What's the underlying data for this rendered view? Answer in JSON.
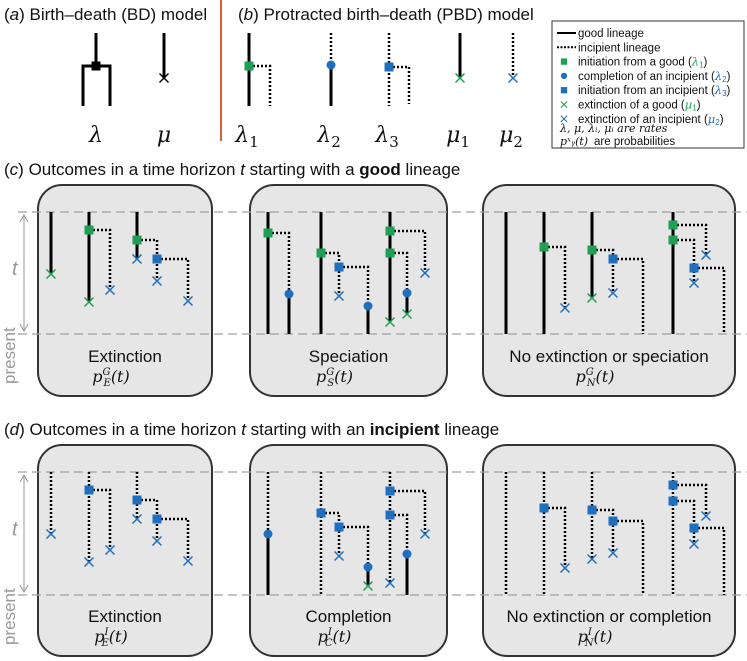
{
  "panel_a": {
    "label": "a",
    "title": "Birth–death (BD) model",
    "rates": [
      "λ",
      "μ"
    ]
  },
  "panel_b": {
    "label": "b",
    "title": "Protracted birth–death (PBD) model",
    "rates": [
      {
        "sym": "λ",
        "sub": "1"
      },
      {
        "sym": "λ",
        "sub": "2"
      },
      {
        "sym": "λ",
        "sub": "3"
      },
      {
        "sym": "μ",
        "sub": "1"
      },
      {
        "sym": "μ",
        "sub": "2"
      }
    ]
  },
  "legend": {
    "items": [
      {
        "icon": "solid-line",
        "text": "good lineage",
        "rate": ""
      },
      {
        "icon": "dotted-line",
        "text": "incipient lineage",
        "rate": ""
      },
      {
        "icon": "green-square",
        "text": "initiation from a good (",
        "rate": "λ1"
      },
      {
        "icon": "blue-dot",
        "text": "completion of an incipient (",
        "rate": "λ2"
      },
      {
        "icon": "blue-square",
        "text": "initiation from an incipient (",
        "rate": "λ3"
      },
      {
        "icon": "green-cross",
        "text": "extinction of a good (",
        "rate": "μ1"
      },
      {
        "icon": "blue-cross",
        "text": "extinction of an incipient (",
        "rate": "μ2"
      }
    ],
    "note_rates": "λ, μ, λᵢ, μᵢ are rates",
    "note_probs": "are probabilities",
    "note_probs_sym": "pˣᵧ(t)"
  },
  "panel_c": {
    "label": "c",
    "title_pre": "Outcomes in a time horizon ",
    "title_t": "t",
    "title_mid": " starting with a ",
    "title_bold": "good",
    "title_post": " lineage",
    "outcomes": [
      {
        "name": "Extinction",
        "sup": "G",
        "sub": "E"
      },
      {
        "name": "Speciation",
        "sup": "G",
        "sub": "S"
      },
      {
        "name": "No extinction or speciation",
        "sup": "G",
        "sub": "N"
      }
    ]
  },
  "panel_d": {
    "label": "d",
    "title_pre": "Outcomes in a time horizon ",
    "title_t": "t",
    "title_mid": " starting with an ",
    "title_bold": "incipient",
    "title_post": " lineage",
    "outcomes": [
      {
        "name": "Extinction",
        "sup": "I",
        "sub": "E"
      },
      {
        "name": "Completion",
        "sup": "I",
        "sub": "C"
      },
      {
        "name": "No extinction or completion",
        "sup": "I",
        "sub": "N"
      }
    ]
  },
  "axis": {
    "t": "t",
    "present": "present"
  },
  "colors": {
    "green": "#1ea052",
    "blue": "#1f6fbf",
    "divider": "#d2603a",
    "box_fill": "#e6e6e6",
    "box_stroke": "#333333",
    "guide": "#a0a0a0"
  }
}
